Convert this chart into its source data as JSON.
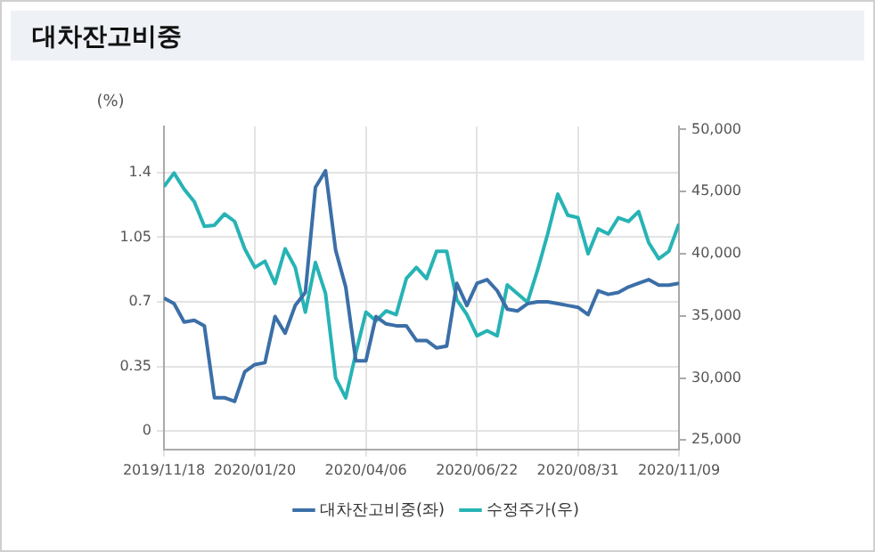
{
  "chart_data": {
    "type": "line",
    "title": "대차잔고비중",
    "ylabel": "(%)",
    "x": [
      "2019-11-18",
      "2019-11-25",
      "2019-12-02",
      "2019-12-09",
      "2019-12-16",
      "2019-12-23",
      "2019-12-30",
      "2020-01-06",
      "2020-01-13",
      "2020-01-20",
      "2020-01-27",
      "2020-02-03",
      "2020-02-10",
      "2020-02-17",
      "2020-02-24",
      "2020-03-02",
      "2020-03-09",
      "2020-03-16",
      "2020-03-23",
      "2020-03-30",
      "2020-04-06",
      "2020-04-13",
      "2020-04-20",
      "2020-04-27",
      "2020-05-04",
      "2020-05-11",
      "2020-05-18",
      "2020-05-25",
      "2020-06-01",
      "2020-06-08",
      "2020-06-15",
      "2020-06-22",
      "2020-06-29",
      "2020-07-06",
      "2020-07-13",
      "2020-07-20",
      "2020-07-27",
      "2020-08-03",
      "2020-08-10",
      "2020-08-17",
      "2020-08-24",
      "2020-08-31",
      "2020-09-07",
      "2020-09-14",
      "2020-09-21",
      "2020-09-28",
      "2020-10-05",
      "2020-10-12",
      "2020-10-19",
      "2020-10-26",
      "2020-11-02",
      "2020-11-09"
    ],
    "series": [
      {
        "name": "대차잔고비중(좌)",
        "color": "#3b6fa8",
        "values": [
          0.72,
          0.69,
          0.59,
          0.6,
          0.57,
          0.18,
          0.18,
          0.16,
          0.32,
          0.36,
          0.37,
          0.62,
          0.53,
          0.68,
          0.75,
          1.32,
          1.41,
          0.98,
          0.78,
          0.38,
          0.38,
          0.62,
          0.58,
          0.57,
          0.57,
          0.49,
          0.49,
          0.45,
          0.46,
          0.8,
          0.68,
          0.8,
          0.82,
          0.76,
          0.66,
          0.65,
          0.69,
          0.7,
          0.7,
          0.69,
          0.68,
          0.67,
          0.63,
          0.76,
          0.74,
          0.75,
          0.78,
          0.8,
          0.82,
          0.79,
          0.79,
          0.8
        ]
      },
      {
        "name": "수정주가(우)",
        "color": "#27b3b5",
        "axis": "y2",
        "values": [
          45400,
          46500,
          45200,
          44200,
          42200,
          42300,
          43200,
          42600,
          40400,
          38900,
          39400,
          37600,
          40400,
          38900,
          35300,
          39300,
          36800,
          30000,
          28400,
          32000,
          35300,
          34600,
          35400,
          35100,
          38000,
          38900,
          38000,
          40200,
          40200,
          36300,
          35100,
          33400,
          33800,
          33400,
          37500,
          36800,
          36100,
          38700,
          41600,
          44800,
          43100,
          42900,
          40000,
          42000,
          41600,
          42900,
          42600,
          43400,
          40900,
          39600,
          40200,
          42400
        ]
      }
    ],
    "xlim": [
      "2019-11-18",
      "2020-11-09"
    ],
    "xticks": [
      {
        "value": "2019-11-18",
        "label": "2019/11/18"
      },
      {
        "value": "2020-01-20",
        "label": "2020/01/20"
      },
      {
        "value": "2020-04-06",
        "label": "2020/04/06"
      },
      {
        "value": "2020-06-22",
        "label": "2020/06/22"
      },
      {
        "value": "2020-08-31",
        "label": "2020/08/31"
      },
      {
        "value": "2020-11-09",
        "label": "2020/11/09"
      }
    ],
    "ylim": [
      -0.1,
      1.65
    ],
    "yticks": [
      0,
      0.35,
      0.7,
      1.05,
      1.4
    ],
    "y2lim": [
      24250,
      50250
    ],
    "y2ticks": [
      {
        "value": 25000,
        "label": "25,000"
      },
      {
        "value": 30000,
        "label": "30,000"
      },
      {
        "value": 35000,
        "label": "35,000"
      },
      {
        "value": 40000,
        "label": "40,000"
      },
      {
        "value": 45000,
        "label": "45,000"
      },
      {
        "value": 50000,
        "label": "50,000"
      }
    ],
    "grid": true,
    "legend": "bottom",
    "marker": "none",
    "line_style": "solid"
  }
}
